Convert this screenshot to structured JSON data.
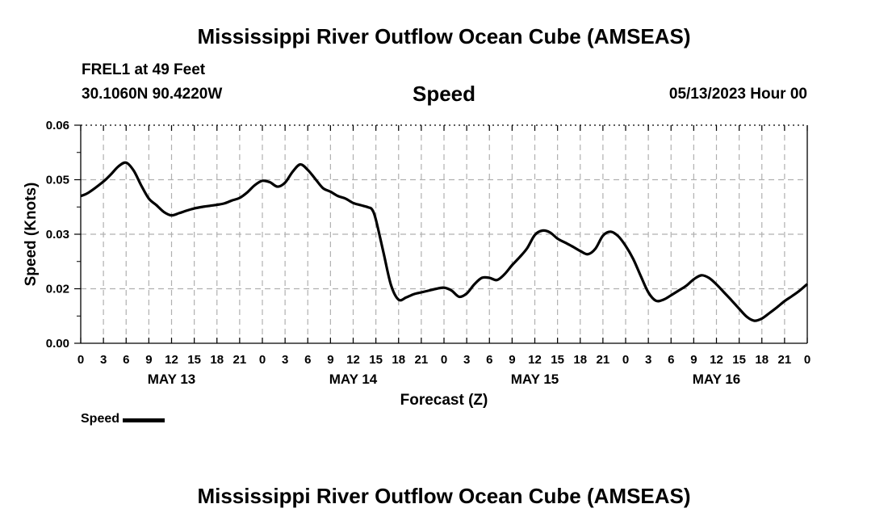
{
  "header": {
    "title": "Mississippi River Outflow Ocean Cube (AMSEAS)",
    "station": "FREL1 at 49 Feet",
    "coords": "30.1060N  90.4220W",
    "parameter": "Speed",
    "datetime": "05/13/2023 Hour 00"
  },
  "footer": {
    "title": "Mississippi River Outflow Ocean Cube (AMSEAS)"
  },
  "legend": {
    "label": "Speed",
    "color": "#000000"
  },
  "chart_data": {
    "type": "line",
    "title": "Speed",
    "xlabel": "Forecast (Z)",
    "ylabel": "Speed (Knots)",
    "xlim": [
      0,
      96
    ],
    "ylim": [
      0,
      0.06
    ],
    "y_ticks": [
      "0.00",
      "0.02",
      "0.03",
      "0.05",
      "0.06"
    ],
    "y_tick_values": [
      0,
      0.015,
      0.03,
      0.045,
      0.06
    ],
    "x_ticks": [
      "0",
      "3",
      "6",
      "9",
      "12",
      "15",
      "18",
      "21",
      "0",
      "3",
      "6",
      "9",
      "12",
      "15",
      "18",
      "21",
      "0",
      "3",
      "6",
      "9",
      "12",
      "15",
      "18",
      "21",
      "0",
      "3",
      "6",
      "9",
      "12",
      "15",
      "18",
      "21",
      "0"
    ],
    "day_labels": [
      {
        "label": "MAY 13",
        "hour": 12
      },
      {
        "label": "MAY 14",
        "hour": 36
      },
      {
        "label": "MAY 15",
        "hour": 60
      },
      {
        "label": "MAY 16",
        "hour": 84
      }
    ],
    "grid": true,
    "series": [
      {
        "name": "Speed",
        "color": "#000000",
        "x": [
          0,
          1,
          3,
          4,
          5,
          6,
          7,
          8,
          9,
          10,
          11,
          12,
          13,
          14,
          15,
          16,
          17,
          18,
          19,
          20,
          21,
          22,
          23,
          24,
          25,
          26,
          27,
          28,
          29,
          30,
          31,
          32,
          33,
          34,
          35,
          36,
          37,
          38,
          38.5,
          39,
          40,
          41,
          42,
          43,
          44,
          45,
          46,
          47,
          48,
          49,
          50,
          51,
          52,
          53,
          54,
          55,
          56,
          57,
          58,
          59,
          60,
          61,
          62,
          63,
          64,
          65,
          66,
          67,
          68,
          69,
          70,
          71,
          72,
          73,
          74,
          75,
          76,
          77,
          78,
          79,
          80,
          81,
          82,
          83,
          84,
          85,
          86,
          87,
          88,
          89,
          90,
          91,
          92,
          93,
          94,
          95,
          96
        ],
        "y": [
          0.0405,
          0.0414,
          0.0445,
          0.0465,
          0.0487,
          0.0497,
          0.0475,
          0.0434,
          0.0398,
          0.038,
          0.0361,
          0.0352,
          0.0358,
          0.0365,
          0.0371,
          0.0375,
          0.0378,
          0.0381,
          0.0385,
          0.0393,
          0.04,
          0.0415,
          0.0435,
          0.0447,
          0.0443,
          0.0431,
          0.0442,
          0.0472,
          0.0492,
          0.0477,
          0.0452,
          0.0427,
          0.0417,
          0.0405,
          0.0398,
          0.0386,
          0.038,
          0.0374,
          0.0368,
          0.034,
          0.025,
          0.016,
          0.012,
          0.0126,
          0.0135,
          0.014,
          0.0145,
          0.015,
          0.0153,
          0.0145,
          0.0128,
          0.0137,
          0.0162,
          0.018,
          0.018,
          0.0174,
          0.019,
          0.0215,
          0.0237,
          0.0262,
          0.0298,
          0.031,
          0.0305,
          0.0288,
          0.0277,
          0.0266,
          0.0254,
          0.0245,
          0.026,
          0.0296,
          0.0307,
          0.0295,
          0.0268,
          0.0232,
          0.0185,
          0.014,
          0.0117,
          0.012,
          0.0132,
          0.0145,
          0.0158,
          0.0176,
          0.0187,
          0.018,
          0.0162,
          0.014,
          0.0118,
          0.0095,
          0.0073,
          0.0062,
          0.0068,
          0.0083,
          0.0099,
          0.0116,
          0.013,
          0.0145,
          0.0163
        ]
      }
    ]
  }
}
